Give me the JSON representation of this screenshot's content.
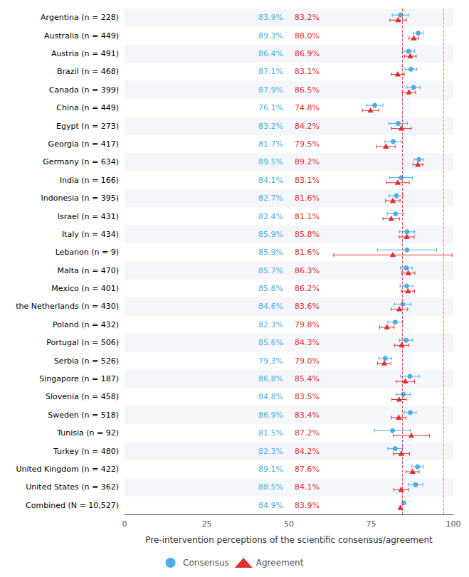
{
  "chart_data": {
    "type": "scatter",
    "orientation": "horizontal",
    "xlabel": "Pre-intervention perceptions of the scientific consensus/agreement",
    "categories": [
      "Argentina (n = 228)",
      "Australia (n = 449)",
      "Austria (n = 491)",
      "Brazil (n = 468)",
      "Canada (n = 399)",
      "China (n = 449)",
      "Egypt (n = 273)",
      "Georgia (n = 417)",
      "Germany (n = 634)",
      "India (n = 166)",
      "Indonesia (n = 395)",
      "Israel (n = 431)",
      "Italy (n = 434)",
      "Lebanon (n = 9)",
      "Malta (n = 470)",
      "Mexico (n = 401)",
      "the Netherlands (n = 430)",
      "Poland (n = 432)",
      "Portugal (n = 506)",
      "Serbia (n = 526)",
      "Singapore (n = 187)",
      "Slovenia (n = 458)",
      "Sweden (n = 518)",
      "Tunisia (n = 92)",
      "Turkey (n = 480)",
      "United Kingdom (n = 422)",
      "United States (n = 362)",
      "Combined (N = 10,527)"
    ],
    "xlim": [
      0,
      100
    ],
    "xticks": [
      0,
      25,
      50,
      75,
      100
    ],
    "grid": false,
    "legend": "bottom",
    "data_labels": true,
    "series": [
      {
        "name": "Consensus",
        "color": "#4AAEE8",
        "marker": "circle",
        "values": [
          83.9,
          89.3,
          86.4,
          87.1,
          87.9,
          76.1,
          83.2,
          81.7,
          89.5,
          84.1,
          82.7,
          82.4,
          85.9,
          85.9,
          85.7,
          85.8,
          84.6,
          82.3,
          85.6,
          79.3,
          86.8,
          84.8,
          86.9,
          81.5,
          82.3,
          89.1,
          88.5,
          84.9
        ],
        "value_labels": [
          "83.9%",
          "89.3%",
          "86.4%",
          "87.1%",
          "87.9%",
          "76.1%",
          "83.2%",
          "81.7%",
          "89.5%",
          "84.1%",
          "82.7%",
          "82.4%",
          "85.9%",
          "85.9%",
          "85.7%",
          "85.8%",
          "84.6%",
          "82.3%",
          "85.6%",
          "79.3%",
          "86.8%",
          "84.8%",
          "86.9%",
          "81.5%",
          "82.3%",
          "89.1%",
          "88.5%",
          "84.9%"
        ],
        "ci": [
          2.5,
          1.5,
          1.8,
          1.8,
          2.0,
          2.5,
          2.8,
          2.5,
          1.4,
          3.5,
          2.2,
          2.5,
          2.3,
          9.0,
          1.8,
          2.0,
          2.5,
          2.2,
          2.0,
          2.0,
          2.8,
          2.2,
          1.8,
          5.5,
          2.2,
          1.8,
          2.2,
          null
        ],
        "reference_x": 97.0
      },
      {
        "name": "Agreement",
        "color": "#E03030",
        "marker": "triangle",
        "values": [
          83.2,
          88.0,
          86.9,
          83.1,
          86.5,
          74.8,
          84.2,
          79.5,
          89.2,
          83.1,
          81.6,
          81.1,
          85.8,
          81.6,
          86.3,
          86.2,
          83.6,
          79.8,
          84.3,
          79.0,
          85.4,
          83.5,
          83.4,
          87.2,
          84.2,
          87.6,
          84.1,
          83.9
        ],
        "value_labels": [
          "83.2%",
          "88.0%",
          "86.9%",
          "83.1%",
          "86.5%",
          "74.8%",
          "84.2%",
          "79.5%",
          "89.2%",
          "83.1%",
          "81.6%",
          "81.1%",
          "85.8%",
          "81.6%",
          "86.3%",
          "86.2%",
          "83.6%",
          "79.8%",
          "84.3%",
          "79.0%",
          "85.4%",
          "83.5%",
          "83.4%",
          "87.2%",
          "84.2%",
          "87.6%",
          "84.1%",
          "83.9%"
        ],
        "ci": [
          2.5,
          1.5,
          1.8,
          2.0,
          2.0,
          2.5,
          3.0,
          2.8,
          1.5,
          3.5,
          2.2,
          2.5,
          2.3,
          18.0,
          2.0,
          2.0,
          2.5,
          2.2,
          2.2,
          2.0,
          2.8,
          2.2,
          2.2,
          5.5,
          2.5,
          2.0,
          2.2,
          null
        ],
        "reference_x": 84.5
      }
    ]
  }
}
